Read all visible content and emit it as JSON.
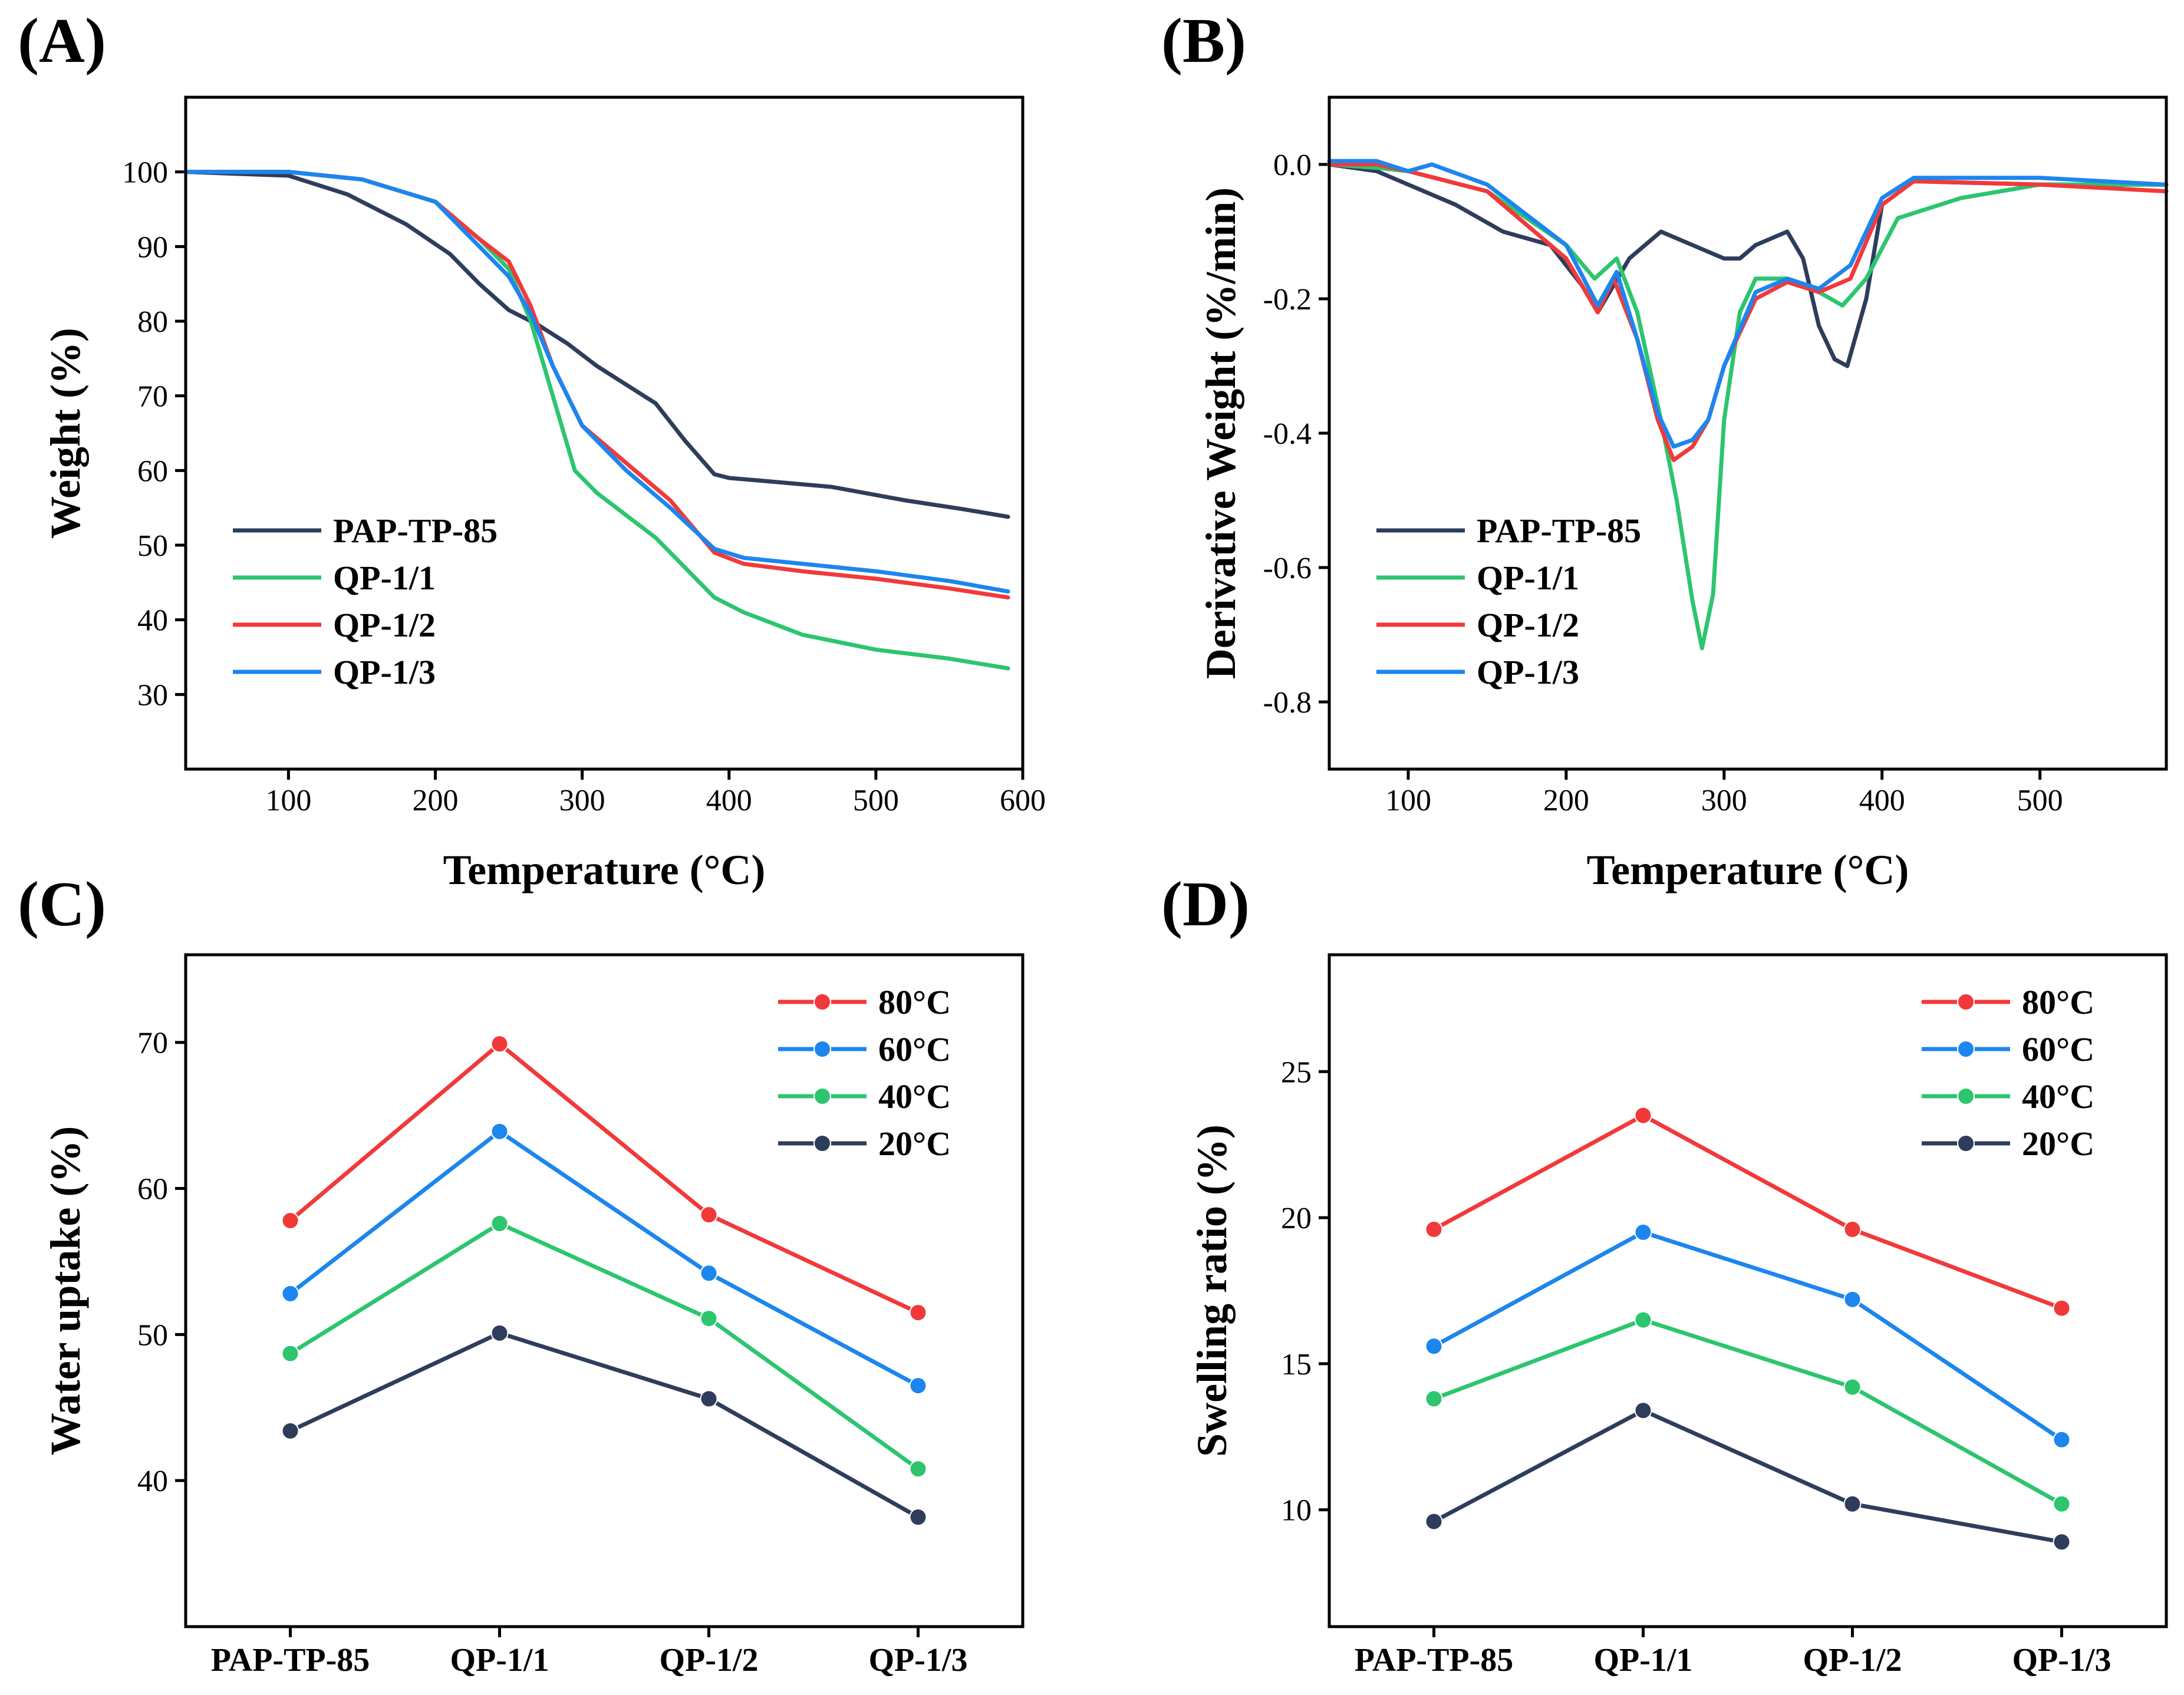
{
  "figure_title": "",
  "chart_data": [
    {
      "panel": "(A)",
      "type": "line",
      "title": "",
      "xlabel": "Temperature (°C)",
      "ylabel": "Weight (%)",
      "xlim": [
        30,
        600
      ],
      "ylim": [
        20,
        110
      ],
      "xticks": [
        100,
        200,
        300,
        400,
        500,
        600
      ],
      "yticks": [
        30,
        40,
        50,
        60,
        70,
        80,
        90,
        100
      ],
      "legend_position": "lower-left",
      "series": [
        {
          "name": "PAP-TP-85",
          "color": "#2E3D5C",
          "x": [
            30,
            100,
            140,
            180,
            210,
            230,
            250,
            270,
            290,
            310,
            330,
            350,
            370,
            390,
            400,
            430,
            470,
            520,
            560,
            590
          ],
          "y": [
            100,
            99.5,
            97,
            93,
            89,
            85,
            81.5,
            79.5,
            77,
            74,
            71.5,
            69,
            64,
            59.5,
            59,
            58.5,
            57.8,
            56,
            54.8,
            53.8
          ]
        },
        {
          "name": "QP-1/1",
          "color": "#2DC56E",
          "x": [
            30,
            100,
            150,
            200,
            230,
            250,
            265,
            280,
            295,
            310,
            330,
            350,
            370,
            390,
            410,
            450,
            500,
            550,
            590
          ],
          "y": [
            100,
            100,
            99,
            96,
            91,
            87,
            80,
            70,
            60,
            57,
            54,
            51,
            47,
            43,
            41,
            38,
            36,
            34.8,
            33.5
          ]
        },
        {
          "name": "QP-1/2",
          "color": "#F2393A",
          "x": [
            30,
            100,
            150,
            200,
            230,
            250,
            265,
            280,
            300,
            330,
            360,
            390,
            410,
            450,
            500,
            550,
            590
          ],
          "y": [
            100,
            100,
            99,
            96,
            91,
            88,
            82,
            74,
            66,
            61,
            56,
            49,
            47.5,
            46.5,
            45.5,
            44.2,
            43
          ]
        },
        {
          "name": "QP-1/3",
          "color": "#1C86EE",
          "x": [
            30,
            100,
            150,
            200,
            230,
            250,
            265,
            280,
            300,
            330,
            360,
            390,
            410,
            450,
            500,
            550,
            590
          ],
          "y": [
            100,
            100,
            99,
            96,
            90,
            86,
            81,
            74,
            66,
            60,
            55,
            49.5,
            48.3,
            47.5,
            46.5,
            45.2,
            43.8
          ]
        }
      ]
    },
    {
      "panel": "(B)",
      "type": "line",
      "title": "",
      "xlabel": "Temperature (°C)",
      "ylabel": "Derivative Weight (%/min)",
      "xlim": [
        50,
        580
      ],
      "ylim": [
        -0.9,
        0.1
      ],
      "xticks": [
        100,
        200,
        300,
        400,
        500
      ],
      "yticks": [
        0.0,
        -0.2,
        -0.4,
        -0.6,
        -0.8
      ],
      "ytick_labels": [
        "0.0",
        "-0.2",
        "-0.4",
        "-0.6",
        "-0.8"
      ],
      "legend_position": "lower-left",
      "series": [
        {
          "name": "PAP-TP-85",
          "color": "#2E3D5C",
          "x": [
            50,
            80,
            100,
            130,
            160,
            190,
            210,
            220,
            230,
            240,
            260,
            280,
            300,
            310,
            320,
            340,
            350,
            360,
            370,
            378,
            390,
            400,
            420,
            500,
            580
          ],
          "y": [
            0,
            -0.01,
            -0.03,
            -0.06,
            -0.1,
            -0.12,
            -0.18,
            -0.22,
            -0.18,
            -0.14,
            -0.1,
            -0.12,
            -0.14,
            -0.14,
            -0.12,
            -0.1,
            -0.14,
            -0.24,
            -0.29,
            -0.3,
            -0.2,
            -0.06,
            -0.025,
            -0.03,
            -0.03
          ]
        },
        {
          "name": "QP-1/1",
          "color": "#2DC56E",
          "x": [
            50,
            80,
            100,
            150,
            200,
            218,
            232,
            245,
            260,
            270,
            280,
            286,
            293,
            300,
            310,
            320,
            340,
            360,
            375,
            390,
            410,
            450,
            500,
            580
          ],
          "y": [
            0,
            -0.005,
            -0.01,
            -0.04,
            -0.12,
            -0.17,
            -0.14,
            -0.22,
            -0.38,
            -0.5,
            -0.65,
            -0.72,
            -0.64,
            -0.38,
            -0.22,
            -0.17,
            -0.17,
            -0.19,
            -0.21,
            -0.17,
            -0.08,
            -0.05,
            -0.03,
            -0.03
          ]
        },
        {
          "name": "QP-1/2",
          "color": "#F2393A",
          "x": [
            50,
            80,
            100,
            150,
            200,
            220,
            230,
            245,
            258,
            268,
            280,
            290,
            300,
            320,
            340,
            360,
            380,
            400,
            420,
            500,
            580
          ],
          "y": [
            0,
            0,
            -0.01,
            -0.04,
            -0.14,
            -0.22,
            -0.17,
            -0.26,
            -0.38,
            -0.44,
            -0.42,
            -0.38,
            -0.3,
            -0.2,
            -0.175,
            -0.19,
            -0.17,
            -0.06,
            -0.025,
            -0.03,
            -0.04
          ]
        },
        {
          "name": "QP-1/3",
          "color": "#1C86EE",
          "x": [
            50,
            80,
            100,
            115,
            150,
            200,
            220,
            232,
            245,
            258,
            268,
            280,
            290,
            300,
            320,
            340,
            360,
            380,
            400,
            420,
            500,
            580
          ],
          "y": [
            0.005,
            0.005,
            -0.01,
            0.0,
            -0.03,
            -0.12,
            -0.21,
            -0.16,
            -0.26,
            -0.37,
            -0.42,
            -0.41,
            -0.38,
            -0.3,
            -0.19,
            -0.17,
            -0.185,
            -0.15,
            -0.05,
            -0.02,
            -0.02,
            -0.03
          ]
        }
      ]
    },
    {
      "panel": "(C)",
      "type": "line",
      "title": "",
      "xlabel": "",
      "ylabel": "Water uptake (%)",
      "categories": [
        "PAP-TP-85",
        "QP-1/1",
        "QP-1/2",
        "QP-1/3"
      ],
      "ylim": [
        30,
        76
      ],
      "yticks": [
        40,
        50,
        60,
        70
      ],
      "legend_position": "top-right",
      "series": [
        {
          "name": "80°C",
          "color": "#F2393A",
          "values": [
            57.8,
            69.9,
            58.2,
            51.5
          ]
        },
        {
          "name": "60°C",
          "color": "#1C86EE",
          "values": [
            52.8,
            63.9,
            54.2,
            46.5
          ]
        },
        {
          "name": "40°C",
          "color": "#2DC56E",
          "values": [
            48.7,
            57.6,
            51.1,
            40.8
          ]
        },
        {
          "name": "20°C",
          "color": "#2E3D5C",
          "values": [
            43.4,
            50.1,
            45.6,
            37.5
          ]
        }
      ]
    },
    {
      "panel": "(D)",
      "type": "line",
      "title": "",
      "xlabel": "",
      "ylabel": "Swelling ratio (%)",
      "categories": [
        "PAP-TP-85",
        "QP-1/1",
        "QP-1/2",
        "QP-1/3"
      ],
      "ylim": [
        6,
        29
      ],
      "yticks": [
        10,
        15,
        20,
        25
      ],
      "legend_position": "top-right",
      "series": [
        {
          "name": "80°C",
          "color": "#F2393A",
          "values": [
            19.6,
            23.5,
            19.6,
            16.9
          ]
        },
        {
          "name": "60°C",
          "color": "#1C86EE",
          "values": [
            15.6,
            19.5,
            17.2,
            12.4
          ]
        },
        {
          "name": "40°C",
          "color": "#2DC56E",
          "values": [
            13.8,
            16.5,
            14.2,
            10.2
          ]
        },
        {
          "name": "20°C",
          "color": "#2E3D5C",
          "values": [
            9.6,
            13.4,
            10.2,
            8.9
          ]
        }
      ]
    }
  ]
}
